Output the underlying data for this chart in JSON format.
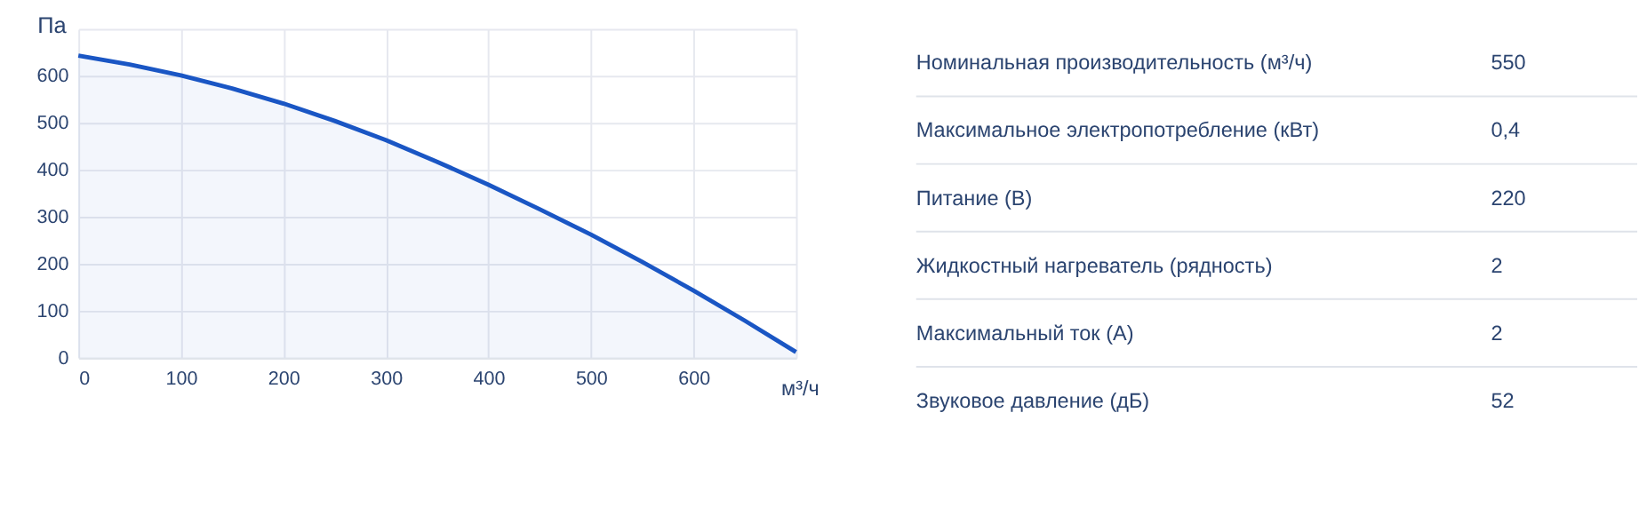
{
  "chart_data": [
    {
      "type": "area",
      "xlabel": "м³/ч",
      "ylabel": "Па",
      "xlim": [
        0,
        700
      ],
      "ylim": [
        0,
        700
      ],
      "xticks": [
        0,
        100,
        200,
        300,
        400,
        500,
        600,
        {
          "value": 700,
          "label": null
        }
      ],
      "yticks": [
        0,
        100,
        200,
        300,
        400,
        500,
        600,
        {
          "value": 700,
          "label": null
        }
      ],
      "grid": true,
      "x": [
        0,
        50,
        100,
        150,
        200,
        250,
        300,
        350,
        400,
        450,
        500,
        550,
        600,
        650,
        700
      ],
      "series": [
        {
          "color": "#1a56c4",
          "values": [
            643,
            624,
            601,
            573,
            541,
            504,
            463,
            417,
            368,
            316,
            262,
            204,
            143,
            79,
            12
          ]
        }
      ]
    },
    {
      "type": "other",
      "categories": [
        "Номинальная производительность (м³/ч)",
        "Максимальное электропотребление (кВт)",
        "Питание (В)",
        "Жидкостный нагреватель (рядность)",
        "Максимальный ток (А)",
        "Звуковое давление (дБ)"
      ],
      "value_labels": [
        "550",
        "0,4",
        "220",
        "2",
        "2",
        "52"
      ]
    }
  ]
}
